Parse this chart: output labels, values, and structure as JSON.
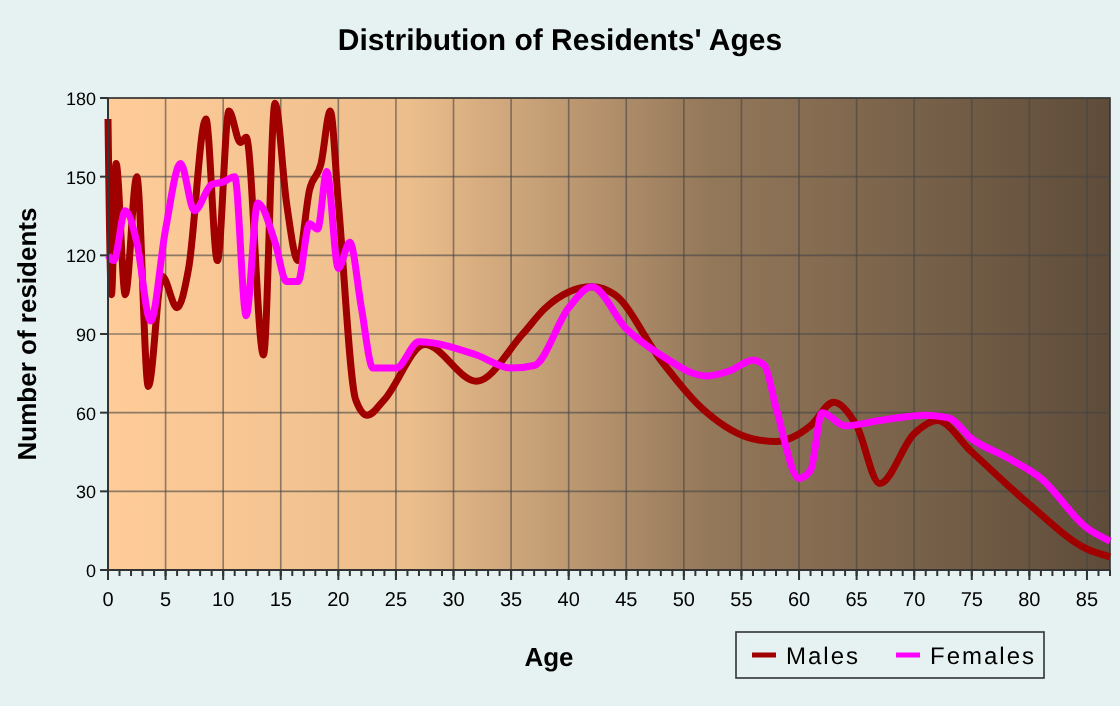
{
  "chart_data": {
    "type": "line",
    "title": "Distribution of Residents' Ages",
    "xlabel": "Age",
    "ylabel": "Number of residents",
    "xlim": [
      0,
      87
    ],
    "xticks": [
      0,
      5,
      10,
      15,
      20,
      25,
      30,
      35,
      40,
      45,
      50,
      55,
      60,
      65,
      70,
      75,
      80,
      85
    ],
    "ylim": [
      0,
      180
    ],
    "yticks": [
      0,
      30,
      60,
      90,
      120,
      150,
      180
    ],
    "grid": true,
    "legend": "bottom right",
    "series": [
      {
        "name": "Males",
        "color": "#a00000",
        "x": [
          0,
          0.3,
          0.7,
          1.5,
          2.5,
          3.5,
          4.7,
          6,
          7,
          8.5,
          9.5,
          10.5,
          11.5,
          12,
          13.5,
          14.5,
          15.5,
          16.5,
          17.5,
          18.5,
          19.3,
          20,
          21.5,
          22.5,
          24,
          27.5,
          32,
          36,
          38,
          42,
          44,
          48,
          52,
          56,
          58,
          61,
          63,
          65,
          67,
          70,
          72,
          75,
          80,
          85,
          87
        ],
        "values": [
          172,
          105,
          155,
          105,
          150,
          70,
          112,
          100,
          115,
          172,
          118,
          175,
          163,
          165,
          82,
          178,
          140,
          118,
          145,
          155,
          175,
          140,
          65,
          59,
          65,
          86,
          72,
          90,
          100,
          108,
          105,
          80,
          60,
          50,
          49,
          55,
          64,
          55,
          33,
          52,
          57,
          45,
          25,
          8,
          5
        ]
      },
      {
        "name": "Females",
        "color": "#ff00ff",
        "x": [
          0,
          0.5,
          1.5,
          2.5,
          3.7,
          5,
          6.3,
          7.5,
          9,
          10,
          11,
          12,
          13,
          14.5,
          15.5,
          16.5,
          17.5,
          18.2,
          19,
          20,
          21,
          22,
          23,
          25,
          27,
          32,
          35,
          37,
          40,
          42,
          45,
          48,
          52,
          54,
          56,
          57,
          58,
          60,
          61,
          62,
          64,
          67,
          71,
          73,
          75,
          78,
          81,
          85,
          87
        ],
        "values": [
          120,
          118,
          137,
          125,
          95,
          130,
          155,
          137,
          147,
          148,
          150,
          97,
          140,
          125,
          110,
          110,
          132,
          130,
          152,
          115,
          125,
          100,
          77,
          77,
          87,
          82,
          77,
          78,
          100,
          108,
          92,
          82,
          74,
          76,
          80,
          78,
          62,
          35,
          38,
          60,
          55,
          57,
          59,
          58,
          50,
          43,
          35,
          16,
          11
        ]
      }
    ]
  }
}
